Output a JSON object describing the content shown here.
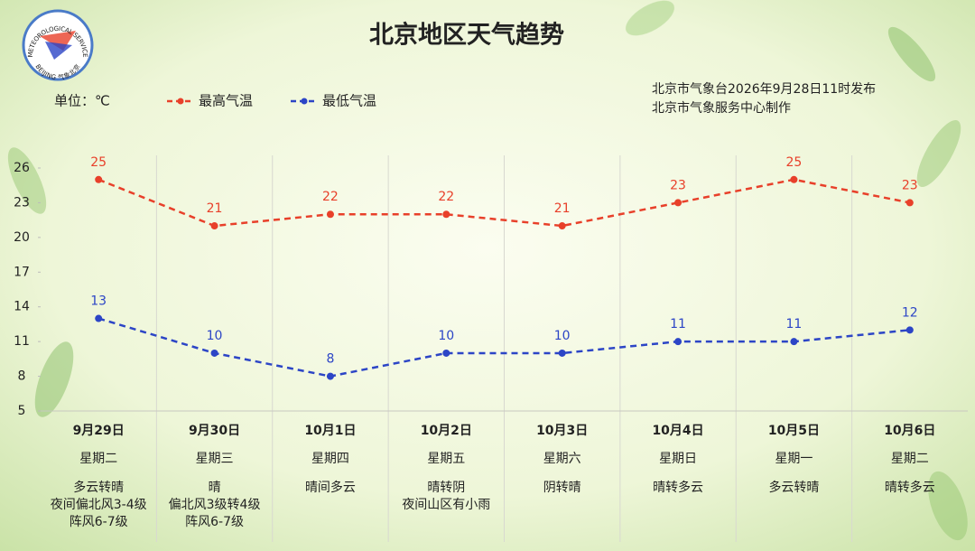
{
  "chart_data": {
    "type": "line",
    "title": "北京地区天气趋势",
    "unit": "单位：℃",
    "publisher": [
      "北京市气象台2026年9月28日11时发布",
      "北京市气象服务中心制作"
    ],
    "logo": [
      "METEOROLOGICAL SERVICE",
      "BEIJING 气象北京"
    ],
    "categories": [
      "9月29日",
      "9月30日",
      "10月1日",
      "10月2日",
      "10月3日",
      "10月4日",
      "10月5日",
      "10月6日"
    ],
    "weekdays": [
      "星期二",
      "星期三",
      "星期四",
      "星期五",
      "星期六",
      "星期日",
      "星期一",
      "星期二"
    ],
    "weather": [
      [
        "多云转晴",
        "夜间偏北风3-4级",
        "阵风6-7级"
      ],
      [
        "晴",
        "偏北风3级转4级",
        "阵风6-7级"
      ],
      [
        "晴间多云"
      ],
      [
        "晴转阴",
        "夜间山区有小雨"
      ],
      [
        "阴转晴"
      ],
      [
        "晴转多云"
      ],
      [
        "多云转晴"
      ],
      [
        "晴转多云"
      ]
    ],
    "series": [
      {
        "name": "最高气温",
        "color": "#e8402a",
        "values": [
          25,
          21,
          22,
          22,
          21,
          23,
          25,
          23
        ]
      },
      {
        "name": "最低气温",
        "color": "#2c45c6",
        "values": [
          13,
          10,
          8,
          10,
          10,
          11,
          11,
          12
        ]
      }
    ],
    "ylim": [
      5,
      26
    ],
    "yticks": [
      5,
      8,
      11,
      14,
      17,
      20,
      23,
      26
    ]
  }
}
